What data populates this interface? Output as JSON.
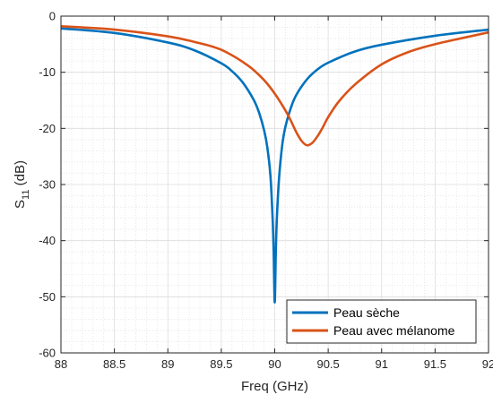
{
  "chart_data": {
    "type": "line",
    "title": "",
    "xlabel": "Freq (GHz)",
    "ylabel_main": "S",
    "ylabel_sub": "11",
    "ylabel_unit": " (dB)",
    "xlim": [
      88,
      92
    ],
    "ylim": [
      -60,
      0
    ],
    "xticks": [
      88,
      88.5,
      89,
      89.5,
      90,
      90.5,
      91,
      91.5,
      92
    ],
    "xtick_labels": [
      "88",
      "88.5",
      "89",
      "89.5",
      "90",
      "90.5",
      "91",
      "91.5",
      "92"
    ],
    "yticks": [
      -60,
      -50,
      -40,
      -30,
      -20,
      -10,
      0
    ],
    "ytick_labels": [
      "-60",
      "-50",
      "-40",
      "-30",
      "-20",
      "-10",
      "0"
    ],
    "grid": true,
    "minor_grid": true,
    "legend_position": "bottom-right",
    "series": [
      {
        "name": "Peau sèche",
        "color": "#0072BD",
        "x": [
          88,
          88.5,
          89,
          89.25,
          89.5,
          89.6,
          89.7,
          89.8,
          89.85,
          89.9,
          89.93,
          89.96,
          89.98,
          89.99,
          90.0,
          90.01,
          90.02,
          90.04,
          90.07,
          90.1,
          90.15,
          90.2,
          90.3,
          90.4,
          90.5,
          90.75,
          91,
          91.5,
          92
        ],
        "y": [
          -2.2,
          -3.0,
          -4.7,
          -6.1,
          -8.4,
          -9.8,
          -11.8,
          -14.8,
          -17.0,
          -20.3,
          -23.3,
          -28.5,
          -36.0,
          -42.0,
          -51.0,
          -42.0,
          -36.0,
          -29.0,
          -23.0,
          -19.7,
          -16.4,
          -14.1,
          -11.3,
          -9.5,
          -8.3,
          -6.3,
          -5.1,
          -3.5,
          -2.4
        ]
      },
      {
        "name": "Peau avec mélanome",
        "color": "#D95319",
        "x": [
          88,
          88.5,
          89,
          89.25,
          89.5,
          89.75,
          89.9,
          90.0,
          90.1,
          90.15,
          90.2,
          90.25,
          90.3,
          90.35,
          90.4,
          90.45,
          90.5,
          90.6,
          90.75,
          91,
          91.25,
          91.5,
          92
        ],
        "y": [
          -1.8,
          -2.4,
          -3.6,
          -4.6,
          -6.0,
          -8.8,
          -11.4,
          -13.8,
          -16.8,
          -18.6,
          -20.6,
          -22.2,
          -23.0,
          -22.6,
          -21.4,
          -19.8,
          -18.0,
          -15.2,
          -12.2,
          -8.6,
          -6.4,
          -5.0,
          -2.9
        ]
      }
    ]
  }
}
